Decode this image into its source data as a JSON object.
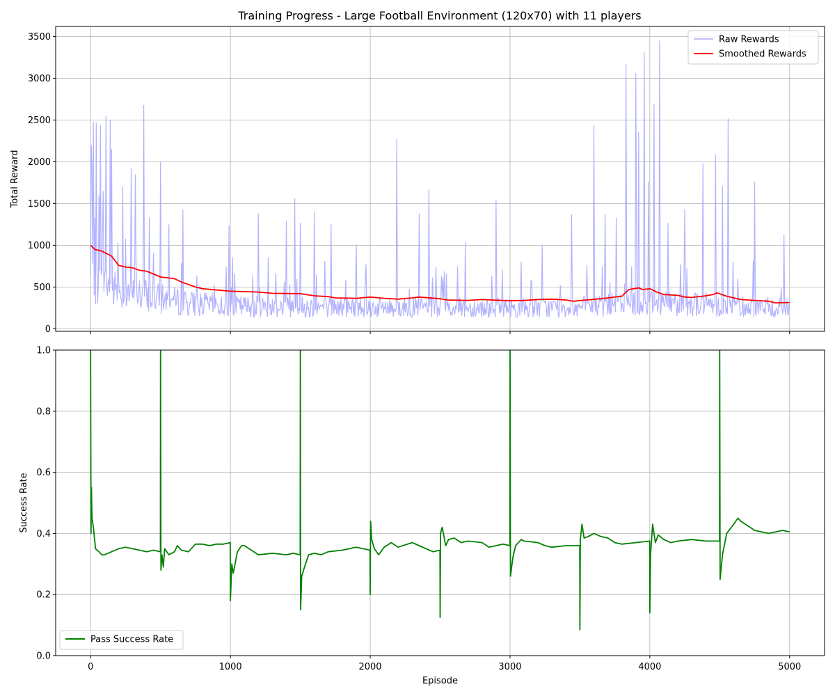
{
  "chart_data": [
    {
      "type": "line",
      "title": "Training Progress - Large Football Environment (120x70) with 11 players",
      "xlabel": "",
      "ylabel": "Total Reward",
      "xlim": [
        -250,
        5250
      ],
      "ylim": [
        -30,
        3620
      ],
      "xticks": [
        0,
        1000,
        2000,
        3000,
        4000,
        5000
      ],
      "yticks": [
        0,
        500,
        1000,
        1500,
        2000,
        2500,
        3000,
        3500
      ],
      "grid": true,
      "legend": "top-right",
      "series": [
        {
          "name": "Raw Rewards",
          "color": "#aaaaff",
          "baseline": [
            [
              0,
              650
            ],
            [
              100,
              560
            ],
            [
              300,
              470
            ],
            [
              500,
              400
            ],
            [
              700,
              340
            ],
            [
              1000,
              300
            ],
            [
              1500,
              290
            ],
            [
              2000,
              285
            ],
            [
              2500,
              280
            ],
            [
              3000,
              275
            ],
            [
              3500,
              285
            ],
            [
              3800,
              330
            ],
            [
              4000,
              360
            ],
            [
              4500,
              310
            ],
            [
              5000,
              270
            ]
          ],
          "spikes": [
            [
              5,
              2200
            ],
            [
              10,
              1900
            ],
            [
              20,
              2480
            ],
            [
              40,
              2470
            ],
            [
              60,
              1600
            ],
            [
              70,
              2440
            ],
            [
              90,
              1650
            ],
            [
              110,
              2550
            ],
            [
              140,
              2500
            ],
            [
              150,
              2150
            ],
            [
              230,
              1700
            ],
            [
              290,
              1920
            ],
            [
              320,
              1850
            ],
            [
              380,
              2680
            ],
            [
              420,
              1330
            ],
            [
              500,
              2000
            ],
            [
              560,
              1250
            ],
            [
              660,
              1430
            ],
            [
              990,
              1240
            ],
            [
              1200,
              1380
            ],
            [
              1400,
              1290
            ],
            [
              1460,
              1560
            ],
            [
              1500,
              1270
            ],
            [
              1600,
              1400
            ],
            [
              1720,
              1260
            ],
            [
              1900,
              1010
            ],
            [
              2190,
              2270
            ],
            [
              2350,
              1380
            ],
            [
              2420,
              1670
            ],
            [
              2680,
              1040
            ],
            [
              2900,
              1540
            ],
            [
              3230,
              1000
            ],
            [
              3440,
              1370
            ],
            [
              3600,
              2440
            ],
            [
              3680,
              1370
            ],
            [
              3760,
              1330
            ],
            [
              3830,
              3170
            ],
            [
              3900,
              3060
            ],
            [
              3920,
              2360
            ],
            [
              3960,
              3310
            ],
            [
              3990,
              1760
            ],
            [
              4030,
              2690
            ],
            [
              4070,
              3450
            ],
            [
              4130,
              1270
            ],
            [
              4250,
              1430
            ],
            [
              4380,
              1980
            ],
            [
              4470,
              2090
            ],
            [
              4520,
              1710
            ],
            [
              4560,
              2520
            ],
            [
              4750,
              1760
            ],
            [
              4960,
              1130
            ]
          ]
        },
        {
          "name": "Smoothed Rewards",
          "color": "#ff0000",
          "values": [
            [
              0,
              1000
            ],
            [
              30,
              950
            ],
            [
              80,
              930
            ],
            [
              150,
              870
            ],
            [
              200,
              760
            ],
            [
              250,
              740
            ],
            [
              300,
              730
            ],
            [
              350,
              700
            ],
            [
              400,
              690
            ],
            [
              500,
              620
            ],
            [
              600,
              600
            ],
            [
              650,
              560
            ],
            [
              700,
              530
            ],
            [
              750,
              500
            ],
            [
              800,
              480
            ],
            [
              1000,
              450
            ],
            [
              1200,
              440
            ],
            [
              1300,
              425
            ],
            [
              1500,
              420
            ],
            [
              1600,
              395
            ],
            [
              1700,
              385
            ],
            [
              1750,
              370
            ],
            [
              1900,
              365
            ],
            [
              2000,
              380
            ],
            [
              2100,
              365
            ],
            [
              2200,
              355
            ],
            [
              2300,
              370
            ],
            [
              2350,
              380
            ],
            [
              2500,
              360
            ],
            [
              2550,
              345
            ],
            [
              2700,
              340
            ],
            [
              2800,
              350
            ],
            [
              3000,
              335
            ],
            [
              3100,
              340
            ],
            [
              3200,
              350
            ],
            [
              3300,
              355
            ],
            [
              3400,
              345
            ],
            [
              3450,
              330
            ],
            [
              3550,
              345
            ],
            [
              3650,
              360
            ],
            [
              3700,
              370
            ],
            [
              3800,
              390
            ],
            [
              3850,
              470
            ],
            [
              3920,
              490
            ],
            [
              3950,
              470
            ],
            [
              4000,
              480
            ],
            [
              4050,
              440
            ],
            [
              4100,
              410
            ],
            [
              4200,
              400
            ],
            [
              4250,
              380
            ],
            [
              4300,
              375
            ],
            [
              4400,
              395
            ],
            [
              4450,
              410
            ],
            [
              4480,
              430
            ],
            [
              4550,
              390
            ],
            [
              4650,
              350
            ],
            [
              4750,
              340
            ],
            [
              4850,
              330
            ],
            [
              4900,
              310
            ],
            [
              5000,
              315
            ]
          ]
        }
      ]
    },
    {
      "type": "line",
      "title": "",
      "xlabel": "Episode",
      "ylabel": "Success Rate",
      "xlim": [
        -250,
        5250
      ],
      "ylim": [
        0,
        1.0
      ],
      "xticks": [
        0,
        1000,
        2000,
        3000,
        4000,
        5000
      ],
      "yticks": [
        0.0,
        0.2,
        0.4,
        0.6,
        0.8,
        1.0
      ],
      "ytick_labels": [
        "0.0",
        "0.2",
        "0.4",
        "0.6",
        "0.8",
        "1.0"
      ],
      "grid": true,
      "legend": "bottom-left",
      "series": [
        {
          "name": "Pass Success Rate",
          "color": "#008000",
          "values": [
            [
              0,
              1.0
            ],
            [
              3,
              0.4
            ],
            [
              6,
              0.55
            ],
            [
              10,
              0.45
            ],
            [
              20,
              0.42
            ],
            [
              35,
              0.35
            ],
            [
              60,
              0.34
            ],
            [
              80,
              0.33
            ],
            [
              100,
              0.33
            ],
            [
              150,
              0.34
            ],
            [
              200,
              0.35
            ],
            [
              250,
              0.355
            ],
            [
              300,
              0.35
            ],
            [
              350,
              0.345
            ],
            [
              400,
              0.34
            ],
            [
              450,
              0.345
            ],
            [
              499,
              0.34
            ],
            [
              500,
              1.0
            ],
            [
              503,
              0.28
            ],
            [
              510,
              0.33
            ],
            [
              520,
              0.29
            ],
            [
              530,
              0.35
            ],
            [
              560,
              0.33
            ],
            [
              600,
              0.34
            ],
            [
              620,
              0.36
            ],
            [
              650,
              0.345
            ],
            [
              700,
              0.34
            ],
            [
              750,
              0.365
            ],
            [
              800,
              0.365
            ],
            [
              850,
              0.36
            ],
            [
              900,
              0.365
            ],
            [
              950,
              0.365
            ],
            [
              999,
              0.37
            ],
            [
              1000,
              0.18
            ],
            [
              1010,
              0.3
            ],
            [
              1020,
              0.27
            ],
            [
              1050,
              0.34
            ],
            [
              1080,
              0.36
            ],
            [
              1100,
              0.36
            ],
            [
              1150,
              0.345
            ],
            [
              1200,
              0.33
            ],
            [
              1300,
              0.335
            ],
            [
              1400,
              0.33
            ],
            [
              1450,
              0.335
            ],
            [
              1499,
              0.33
            ],
            [
              1500,
              1.0
            ],
            [
              1502,
              0.15
            ],
            [
              1510,
              0.26
            ],
            [
              1530,
              0.29
            ],
            [
              1560,
              0.33
            ],
            [
              1600,
              0.335
            ],
            [
              1650,
              0.33
            ],
            [
              1700,
              0.34
            ],
            [
              1800,
              0.345
            ],
            [
              1850,
              0.35
            ],
            [
              1900,
              0.355
            ],
            [
              1950,
              0.35
            ],
            [
              1999,
              0.345
            ],
            [
              2000,
              0.2
            ],
            [
              2003,
              0.44
            ],
            [
              2010,
              0.38
            ],
            [
              2030,
              0.35
            ],
            [
              2060,
              0.33
            ],
            [
              2100,
              0.355
            ],
            [
              2150,
              0.37
            ],
            [
              2200,
              0.355
            ],
            [
              2300,
              0.37
            ],
            [
              2350,
              0.36
            ],
            [
              2400,
              0.35
            ],
            [
              2450,
              0.34
            ],
            [
              2499,
              0.345
            ],
            [
              2500,
              0.125
            ],
            [
              2503,
              0.4
            ],
            [
              2515,
              0.42
            ],
            [
              2540,
              0.36
            ],
            [
              2560,
              0.38
            ],
            [
              2600,
              0.385
            ],
            [
              2650,
              0.37
            ],
            [
              2700,
              0.375
            ],
            [
              2800,
              0.37
            ],
            [
              2850,
              0.355
            ],
            [
              2900,
              0.36
            ],
            [
              2950,
              0.365
            ],
            [
              2999,
              0.36
            ],
            [
              3000,
              1.0
            ],
            [
              3003,
              0.26
            ],
            [
              3020,
              0.32
            ],
            [
              3040,
              0.36
            ],
            [
              3080,
              0.38
            ],
            [
              3100,
              0.375
            ],
            [
              3200,
              0.37
            ],
            [
              3250,
              0.36
            ],
            [
              3300,
              0.355
            ],
            [
              3400,
              0.36
            ],
            [
              3499,
              0.36
            ],
            [
              3500,
              0.085
            ],
            [
              3503,
              0.38
            ],
            [
              3515,
              0.43
            ],
            [
              3530,
              0.385
            ],
            [
              3560,
              0.39
            ],
            [
              3600,
              0.4
            ],
            [
              3650,
              0.39
            ],
            [
              3700,
              0.385
            ],
            [
              3750,
              0.37
            ],
            [
              3800,
              0.365
            ],
            [
              3900,
              0.37
            ],
            [
              3999,
              0.375
            ],
            [
              4000,
              0.14
            ],
            [
              4005,
              0.33
            ],
            [
              4020,
              0.43
            ],
            [
              4040,
              0.37
            ],
            [
              4060,
              0.395
            ],
            [
              4100,
              0.38
            ],
            [
              4150,
              0.37
            ],
            [
              4200,
              0.375
            ],
            [
              4300,
              0.38
            ],
            [
              4400,
              0.375
            ],
            [
              4499,
              0.375
            ],
            [
              4500,
              1.0
            ],
            [
              4503,
              0.25
            ],
            [
              4520,
              0.33
            ],
            [
              4550,
              0.4
            ],
            [
              4600,
              0.43
            ],
            [
              4630,
              0.45
            ],
            [
              4650,
              0.44
            ],
            [
              4700,
              0.425
            ],
            [
              4750,
              0.41
            ],
            [
              4800,
              0.405
            ],
            [
              4850,
              0.4
            ],
            [
              4900,
              0.405
            ],
            [
              4950,
              0.41
            ],
            [
              5000,
              0.405
            ]
          ]
        }
      ]
    }
  ]
}
